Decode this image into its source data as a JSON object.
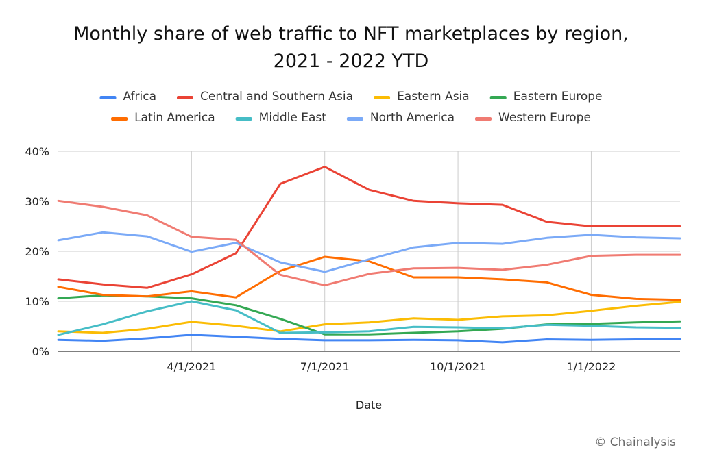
{
  "chart_data": {
    "type": "line",
    "title_lines": [
      "Monthly share of web traffic to NFT marketplaces by region,",
      "2021 - 2022 YTD"
    ],
    "xlabel": "Date",
    "ylabel": "",
    "ylim": [
      0,
      40
    ],
    "y_ticks": [
      0,
      10,
      20,
      30,
      40
    ],
    "y_tick_labels": [
      "0%",
      "10%",
      "20%",
      "30%",
      "40%"
    ],
    "x": [
      "2021-01",
      "2021-02",
      "2021-03",
      "2021-04",
      "2021-05",
      "2021-06",
      "2021-07",
      "2021-08",
      "2021-09",
      "2021-10",
      "2021-11",
      "2021-12",
      "2022-01",
      "2022-02",
      "2022-03"
    ],
    "x_tick_labels": [
      {
        "label": "4/1/2021",
        "index": 3
      },
      {
        "label": "7/1/2021",
        "index": 6
      },
      {
        "label": "10/1/2021",
        "index": 9
      },
      {
        "label": "1/1/2022",
        "index": 12
      }
    ],
    "grid": true,
    "legend_position": "top",
    "series": [
      {
        "name": "Africa",
        "color": "#4285F4",
        "values": [
          2.3,
          2.1,
          2.6,
          3.3,
          2.9,
          2.5,
          2.2,
          2.2,
          2.3,
          2.2,
          1.8,
          2.4,
          2.3,
          2.4,
          2.5
        ]
      },
      {
        "name": "Central and Southern Asia",
        "color": "#EA4335",
        "values": [
          14.4,
          13.4,
          12.7,
          15.4,
          19.6,
          33.5,
          36.9,
          32.3,
          30.1,
          29.6,
          29.3,
          25.9,
          25.0,
          25.0,
          25.0
        ]
      },
      {
        "name": "Eastern Asia",
        "color": "#FBBC04",
        "values": [
          4.0,
          3.7,
          4.5,
          5.9,
          5.1,
          4.0,
          5.4,
          5.8,
          6.6,
          6.3,
          7.0,
          7.2,
          8.1,
          9.1,
          9.9
        ]
      },
      {
        "name": "Eastern Europe",
        "color": "#34A853",
        "values": [
          10.6,
          11.2,
          11.0,
          10.6,
          9.2,
          6.5,
          3.4,
          3.4,
          3.7,
          4.0,
          4.5,
          5.4,
          5.5,
          5.8,
          6.0
        ]
      },
      {
        "name": "Latin America",
        "color": "#FF6D01",
        "values": [
          12.9,
          11.3,
          11.0,
          12.0,
          10.8,
          16.1,
          18.9,
          18.0,
          14.8,
          14.8,
          14.4,
          13.8,
          11.3,
          10.5,
          10.3
        ]
      },
      {
        "name": "Middle East",
        "color": "#46BDC6",
        "values": [
          3.3,
          5.4,
          8.0,
          10.0,
          8.2,
          3.7,
          3.8,
          4.0,
          4.9,
          4.8,
          4.6,
          5.3,
          5.1,
          4.8,
          4.7
        ]
      },
      {
        "name": "North America",
        "color": "#7BAAF7",
        "values": [
          22.2,
          23.8,
          23.0,
          19.9,
          21.7,
          17.8,
          15.9,
          18.4,
          20.8,
          21.7,
          21.5,
          22.7,
          23.3,
          22.8,
          22.6
        ]
      },
      {
        "name": "Western Europe",
        "color": "#F07B72",
        "values": [
          30.1,
          28.9,
          27.2,
          22.9,
          22.3,
          15.3,
          13.2,
          15.5,
          16.6,
          16.7,
          16.3,
          17.3,
          19.1,
          19.3,
          19.3
        ]
      }
    ]
  },
  "credit": "© Chainalysis"
}
